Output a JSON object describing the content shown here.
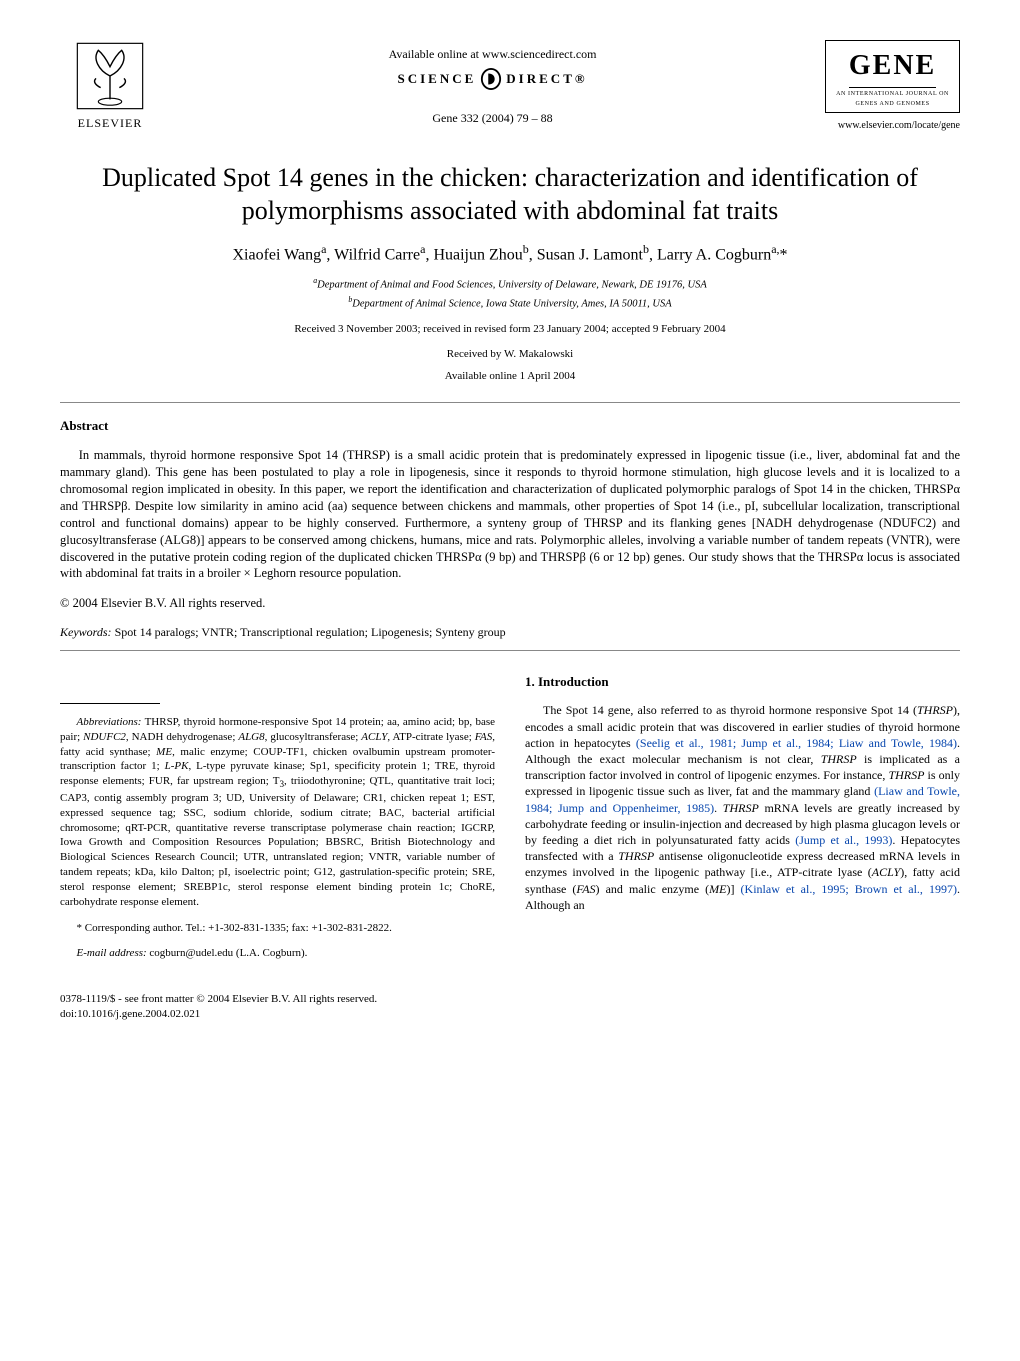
{
  "header": {
    "elsevier": "ELSEVIER",
    "available": "Available online at www.sciencedirect.com",
    "science": "SCIENCE",
    "direct": "DIRECT®",
    "journal_ref": "Gene 332 (2004) 79 – 88",
    "gene_title": "GENE",
    "gene_sub1": "AN INTERNATIONAL JOURNAL ON",
    "gene_sub2": "GENES AND GENOMES",
    "locate": "www.elsevier.com/locate/gene"
  },
  "title": "Duplicated Spot 14 genes in the chicken: characterization and identification of polymorphisms associated with abdominal fat traits",
  "authors_html": "Xiaofei Wang<sup>a</sup>, Wilfrid Carre<sup>a</sup>, Huaijun Zhou<sup>b</sup>, Susan J. Lamont<sup>b</sup>, Larry A. Cogburn<sup>a,</sup>*",
  "affil_a": "a Department of Animal and Food Sciences, University of Delaware, Newark, DE 19176, USA",
  "affil_b": "b Department of Animal Science, Iowa State University, Ames, IA 50011, USA",
  "dates": "Received 3 November 2003; received in revised form 23 January 2004; accepted 9 February 2004",
  "received_by": "Received by W. Makalowski",
  "online_date": "Available online 1 April 2004",
  "abstract_head": "Abstract",
  "abstract": "In mammals, thyroid hormone responsive Spot 14 (THRSP) is a small acidic protein that is predominately expressed in lipogenic tissue (i.e., liver, abdominal fat and the mammary gland). This gene has been postulated to play a role in lipogenesis, since it responds to thyroid hormone stimulation, high glucose levels and it is localized to a chromosomal region implicated in obesity. In this paper, we report the identification and characterization of duplicated polymorphic paralogs of Spot 14 in the chicken, THRSPα and THRSPβ. Despite low similarity in amino acid (aa) sequence between chickens and mammals, other properties of Spot 14 (i.e., pI, subcellular localization, transcriptional control and functional domains) appear to be highly conserved. Furthermore, a synteny group of THRSP and its flanking genes [NADH dehydrogenase (NDUFC2) and glucosyltransferase (ALG8)] appears to be conserved among chickens, humans, mice and rats. Polymorphic alleles, involving a variable number of tandem repeats (VNTR), were discovered in the putative protein coding region of the duplicated chicken THRSPα (9 bp) and THRSPβ (6 or 12 bp) genes. Our study shows that the THRSPα locus is associated with abdominal fat traits in a broiler × Leghorn resource population.",
  "copyright": "© 2004 Elsevier B.V. All rights reserved.",
  "keywords_label": "Keywords:",
  "keywords": " Spot 14 paralogs; VNTR; Transcriptional regulation; Lipogenesis; Synteny group",
  "intro_head": "1. Introduction",
  "intro_body_html": "The Spot 14 gene, also referred to as thyroid hormone responsive Spot 14 (<i>THRSP</i>), encodes a small acidic protein that was discovered in earlier studies of thyroid hormone action in hepatocytes <a class='ref' href='#'>(Seelig et al., 1981; Jump et al., 1984; Liaw and Towle, 1984)</a>. Although the exact molecular mechanism is not clear, <i>THRSP</i> is implicated as a transcription factor involved in control of lipogenic enzymes. For instance, <i>THRSP</i> is only expressed in lipogenic tissue such as liver, fat and the mammary gland <a class='ref' href='#'>(Liaw and Towle, 1984; Jump and Oppenheimer, 1985)</a>. <i>THRSP</i> mRNA levels are greatly increased by carbohydrate feeding or insulin-injection and decreased by high plasma glucagon levels or by feeding a diet rich in polyunsaturated fatty acids <a class='ref' href='#'>(Jump et al., 1993)</a>. Hepatocytes transfected with a <i>THRSP</i> antisense oligonucleotide express decreased mRNA levels in enzymes involved in the lipogenic pathway [i.e., ATP-citrate lyase (<i>ACLY</i>), fatty acid synthase (<i>FAS</i>) and malic enzyme (<i>ME</i>)] <a class='ref' href='#'>(Kinlaw et al., 1995; Brown et al., 1997)</a>. Although an",
  "abbrev_label": "Abbreviations:",
  "abbrev_html": " THRSP, thyroid hormone-responsive Spot 14 protein; aa, amino acid; bp, base pair; <i>NDUFC2</i>, NADH dehydrogenase; <i>ALG8</i>, glucosyltransferase; <i>ACLY</i>, ATP-citrate lyase; <i>FAS</i>, fatty acid synthase; <i>ME</i>, malic enzyme; COUP-TF1, chicken ovalbumin upstream promoter-transcription factor 1; <i>L-PK</i>, L-type pyruvate kinase; Sp1, specificity protein 1; TRE, thyroid response elements; FUR, far upstream region; T<sub>3</sub>, triiodothyronine; QTL, quantitative trait loci; CAP3, contig assembly program 3; UD, University of Delaware; CR1, chicken repeat 1; EST, expressed sequence tag; SSC, sodium chloride, sodium citrate; BAC, bacterial artificial chromosome; qRT-PCR, quantitative reverse transcriptase polymerase chain reaction; IGCRP, Iowa Growth and Composition Resources Population; BBSRC, British Biotechnology and Biological Sciences Research Council; UTR, untranslated region; VNTR, variable number of tandem repeats; kDa, kilo Dalton; pI, isoelectric point; G12, gastrulation-specific protein; SRE, sterol response element; SREBP1c, sterol response element binding protein 1c; ChoRE, carbohydrate response element.",
  "corr": "* Corresponding author. Tel.: +1-302-831-1335; fax: +1-302-831-2822.",
  "email_label": "E-mail address:",
  "email": " cogburn@udel.edu (L.A. Cogburn).",
  "doi_line1": "0378-1119/$ - see front matter © 2004 Elsevier B.V. All rights reserved.",
  "doi_line2": "doi:10.1016/j.gene.2004.02.021",
  "colors": {
    "text": "#000000",
    "bg": "#ffffff",
    "rule": "#888888",
    "link": "#0645ad"
  }
}
